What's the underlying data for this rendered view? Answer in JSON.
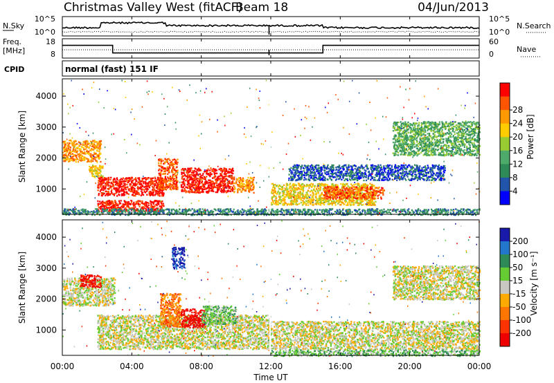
{
  "header": {
    "title": "Christmas Valley West (fitACF)",
    "beam": "Beam 18",
    "date": "04/Jun/2013"
  },
  "time_axis": {
    "label": "Time UT",
    "ticks": [
      "00:00",
      "04:00",
      "08:00",
      "12:00",
      "16:00",
      "20:00",
      "00:00"
    ],
    "tick_hours": [
      0,
      4,
      8,
      12,
      16,
      20,
      24
    ],
    "range_hours": [
      0,
      24
    ]
  },
  "noise_panel": {
    "left_label": "N.Sky",
    "right_label": "N.Search",
    "left_ticks": [
      "10^5",
      "10^0"
    ],
    "right_ticks": [
      "10^5",
      "10^0"
    ]
  },
  "freq_panel": {
    "left_label_1": "Freq.",
    "left_label_2": "[MHz]",
    "right_label": "Nave",
    "left_ticks": [
      "18",
      "8"
    ],
    "right_ticks": [
      "60",
      "0"
    ]
  },
  "cpid": {
    "label": "CPID",
    "value": "normal (fast) 151 IF"
  },
  "power_panel": {
    "ylabel": "Slant Range [km]",
    "yticks": [
      1000,
      2000,
      3000,
      4000
    ],
    "ylim": [
      180,
      4560
    ],
    "colorbar_label": "Power [dB]",
    "colorbar_ticks": [
      "4",
      "8",
      "12",
      "16",
      "20",
      "24",
      "28"
    ],
    "colors": [
      "#0000ff",
      "#2255aa",
      "#2e8b57",
      "#4daa6a",
      "#99cc33",
      "#ffcc00",
      "#ff9900",
      "#ff5500",
      "#ff0000"
    ]
  },
  "velocity_panel": {
    "ylabel": "Slant Range [km]",
    "yticks": [
      1000,
      2000,
      3000,
      4000
    ],
    "ylim": [
      180,
      4560
    ],
    "colorbar_label": "Velocity [m s⁻¹]",
    "colorbar_ticks": [
      "200",
      "100",
      "50",
      "15",
      "-15",
      "-50",
      "-100",
      "-200"
    ],
    "colors": [
      "#1a1aaa",
      "#2277cc",
      "#2e8b57",
      "#66cc33",
      "#c8c8c0",
      "#ffaa00",
      "#ff7700",
      "#ff3300",
      "#ee0000"
    ]
  },
  "chart_data": {
    "type": "heatmap",
    "x_hours": [
      0,
      24
    ],
    "frequency_mhz": [
      {
        "t0": 0,
        "t1": 2.9,
        "value": 15
      },
      {
        "t0": 2.9,
        "t1": 15.0,
        "value": 10
      },
      {
        "t0": 15.0,
        "t1": 24,
        "value": 15
      }
    ],
    "power_regions": [
      {
        "t0": 0.0,
        "t1": 2.2,
        "r0": 1900,
        "r1": 2600,
        "level": 6
      },
      {
        "t0": 1.5,
        "t1": 2.3,
        "r0": 1400,
        "r1": 1800,
        "level": 5
      },
      {
        "t0": 2.0,
        "t1": 5.8,
        "r0": 800,
        "r1": 1400,
        "level": 8
      },
      {
        "t0": 2.0,
        "t1": 5.8,
        "r0": 300,
        "r1": 650,
        "level": 8
      },
      {
        "t0": 5.5,
        "t1": 6.6,
        "r0": 1000,
        "r1": 2000,
        "level": 7
      },
      {
        "t0": 6.8,
        "t1": 9.8,
        "r0": 900,
        "r1": 1700,
        "level": 8
      },
      {
        "t0": 9.8,
        "t1": 11.0,
        "r0": 900,
        "r1": 1400,
        "level": 6
      },
      {
        "t0": 12.0,
        "t1": 18.0,
        "r0": 500,
        "r1": 1200,
        "level": 5
      },
      {
        "t0": 15.0,
        "t1": 18.5,
        "r0": 700,
        "r1": 1100,
        "level": 7
      },
      {
        "t0": 13.0,
        "t1": 22.0,
        "r0": 1300,
        "r1": 1800,
        "level": 1
      },
      {
        "t0": 19.0,
        "t1": 24.0,
        "r0": 2100,
        "r1": 3200,
        "level": 3
      },
      {
        "t0": 0.0,
        "t1": 24.0,
        "r0": 180,
        "r1": 380,
        "level": 2
      }
    ],
    "velocity_regions": [
      {
        "t0": 0.0,
        "t1": 3.0,
        "r0": 1800,
        "r1": 2700,
        "level": 4
      },
      {
        "t0": 1.0,
        "t1": 2.2,
        "r0": 2400,
        "r1": 2800,
        "level": 8
      },
      {
        "t0": 2.0,
        "t1": 12.0,
        "r0": 400,
        "r1": 1500,
        "level": 4
      },
      {
        "t0": 5.6,
        "t1": 6.8,
        "r0": 1100,
        "r1": 2200,
        "level": 6
      },
      {
        "t0": 6.8,
        "t1": 8.2,
        "r0": 1100,
        "r1": 1700,
        "level": 8
      },
      {
        "t0": 8.0,
        "t1": 10.0,
        "r0": 1200,
        "r1": 1800,
        "level": 3
      },
      {
        "t0": 6.3,
        "t1": 7.0,
        "r0": 3000,
        "r1": 3700,
        "level": 0
      },
      {
        "t0": 12.0,
        "t1": 24.0,
        "r0": 400,
        "r1": 1300,
        "level": 4
      },
      {
        "t0": 12.0,
        "t1": 24.0,
        "r0": 180,
        "r1": 380,
        "level": 3
      },
      {
        "t0": 19.0,
        "t1": 24.0,
        "r0": 2000,
        "r1": 3100,
        "level": 4
      }
    ]
  }
}
